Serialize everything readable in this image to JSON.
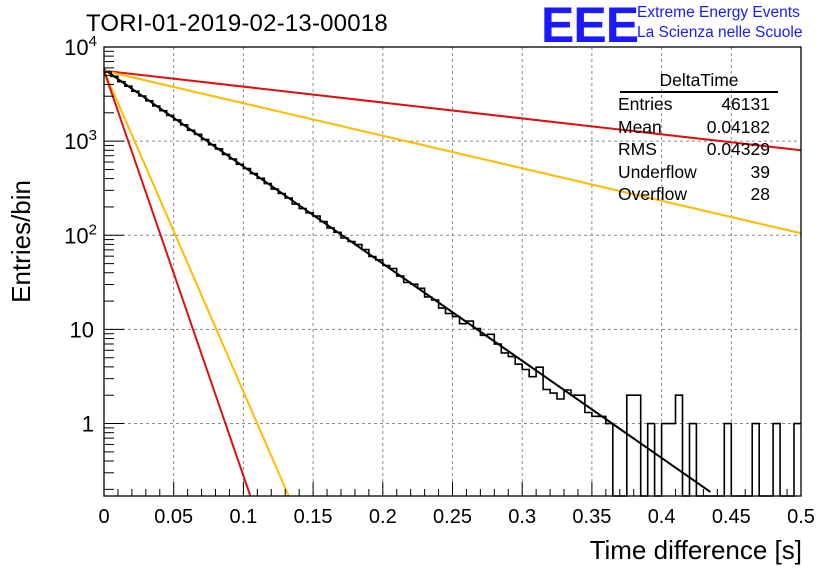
{
  "header": {
    "run_title": "TORI-01-2019-02-13-00018",
    "logo_text": "EEE",
    "brand_line1": "Extreme Energy Events",
    "brand_line2": "La Scienza nelle Scuole",
    "brand_color": "#1a1aff"
  },
  "stats_box": {
    "title": "DeltaTime",
    "rows": [
      {
        "label": "Entries",
        "value": "46131"
      },
      {
        "label": "Mean",
        "value": "0.04182"
      },
      {
        "label": "RMS",
        "value": "0.04329"
      },
      {
        "label": "Underflow",
        "value": "39"
      },
      {
        "label": "Overflow",
        "value": "28"
      }
    ]
  },
  "chart_data": {
    "type": "line",
    "xlabel": "Time difference [s]",
    "ylabel": "Entries/bin",
    "xlim": [
      0,
      0.5
    ],
    "ylim": [
      0.17,
      10000
    ],
    "y_scale": "log",
    "grid": true,
    "x_ticks": [
      "0",
      "0.05",
      "0.1",
      "0.15",
      "0.2",
      "0.25",
      "0.3",
      "0.35",
      "0.4",
      "0.45",
      "0.5"
    ],
    "y_ticks": [
      {
        "value": 1,
        "label": "1"
      },
      {
        "value": 10,
        "label": "10"
      },
      {
        "value": 100,
        "label": "10",
        "exp": "2"
      },
      {
        "value": 1000,
        "label": "10",
        "exp": "3"
      },
      {
        "value": 10000,
        "label": "10",
        "exp": "4"
      }
    ],
    "histogram": {
      "bin_width": 0.005,
      "color": "#000000",
      "sparse_bins": [
        [
          0.36,
          1
        ],
        [
          0.365,
          0
        ],
        [
          0.37,
          0
        ],
        [
          0.375,
          2
        ],
        [
          0.38,
          2
        ],
        [
          0.385,
          0
        ],
        [
          0.39,
          1
        ],
        [
          0.395,
          0
        ],
        [
          0.4,
          1
        ],
        [
          0.405,
          1
        ],
        [
          0.41,
          2
        ],
        [
          0.415,
          0
        ],
        [
          0.42,
          1
        ],
        [
          0.425,
          0
        ],
        [
          0.43,
          0
        ],
        [
          0.435,
          0
        ],
        [
          0.44,
          0
        ],
        [
          0.445,
          1
        ],
        [
          0.45,
          0
        ],
        [
          0.455,
          0
        ],
        [
          0.46,
          0
        ],
        [
          0.465,
          1
        ],
        [
          0.47,
          0
        ],
        [
          0.475,
          0
        ],
        [
          0.48,
          1
        ],
        [
          0.485,
          0
        ],
        [
          0.49,
          0
        ],
        [
          0.495,
          1
        ]
      ]
    },
    "series": [
      {
        "color": "#000000",
        "y0": 5800,
        "y_at": [
          0.5,
          0.04
        ],
        "ext": 0.435
      },
      {
        "color": "#dd1111",
        "y0": 5600,
        "y_at": [
          0.5,
          800
        ],
        "ext": 0.5
      },
      {
        "color": "#ffbb00",
        "y0": 5600,
        "y_at": [
          0.5,
          105
        ],
        "ext": 0.5
      },
      {
        "color": "#ffbb00",
        "y0": 5600,
        "y_at": [
          0.1325,
          0.17
        ],
        "ext": 0.1325
      },
      {
        "color": "#dd1111",
        "y0": 5600,
        "y_at": [
          0.105,
          0.17
        ],
        "ext": 0.105
      }
    ]
  }
}
